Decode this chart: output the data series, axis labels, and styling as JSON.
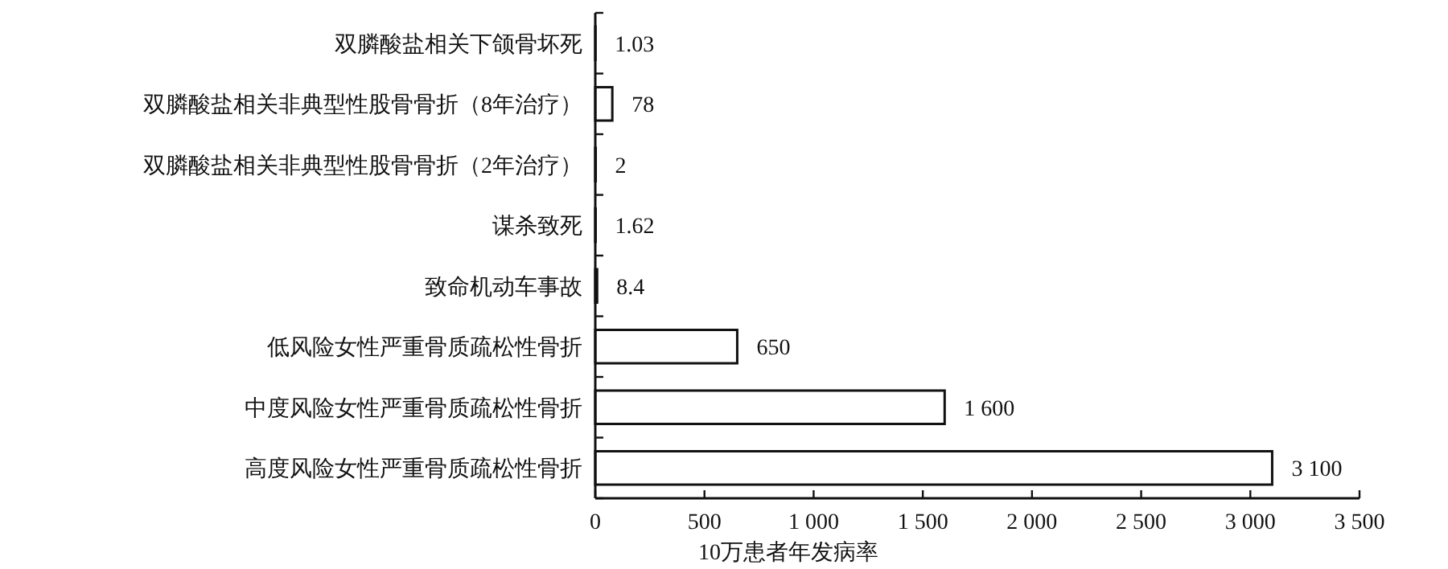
{
  "chart_data": {
    "type": "bar",
    "orientation": "horizontal",
    "xlabel": "10万患者年发病率",
    "categories": [
      "双膦酸盐相关下颌骨坏死",
      "双膦酸盐相关非典型性股骨骨折（8年治疗）",
      "双膦酸盐相关非典型性股骨骨折（2年治疗）",
      "谋杀致死",
      "致命机动车事故",
      "低风险女性严重骨质疏松性骨折",
      "中度风险女性严重骨质疏松性骨折",
      "高度风险女性严重骨质疏松性骨折"
    ],
    "values": [
      1.03,
      78,
      2,
      1.62,
      8.4,
      650,
      1600,
      3100
    ],
    "value_labels": [
      "1.03",
      "78",
      "2",
      "1.62",
      "8.4",
      "650",
      "1 600",
      "3 100"
    ],
    "color": "#ffffff",
    "xlim": [
      0,
      3500
    ],
    "xticks": [
      0,
      500,
      {
        "value": 1000,
        "label": "1 000"
      },
      {
        "value": 1500,
        "label": "1 500"
      },
      {
        "value": 2000,
        "label": "2 000"
      },
      {
        "value": 2500,
        "label": "2 500"
      },
      {
        "value": 3000,
        "label": "3 000"
      },
      {
        "value": 3500,
        "label": "3 500"
      }
    ],
    "grid": false
  }
}
